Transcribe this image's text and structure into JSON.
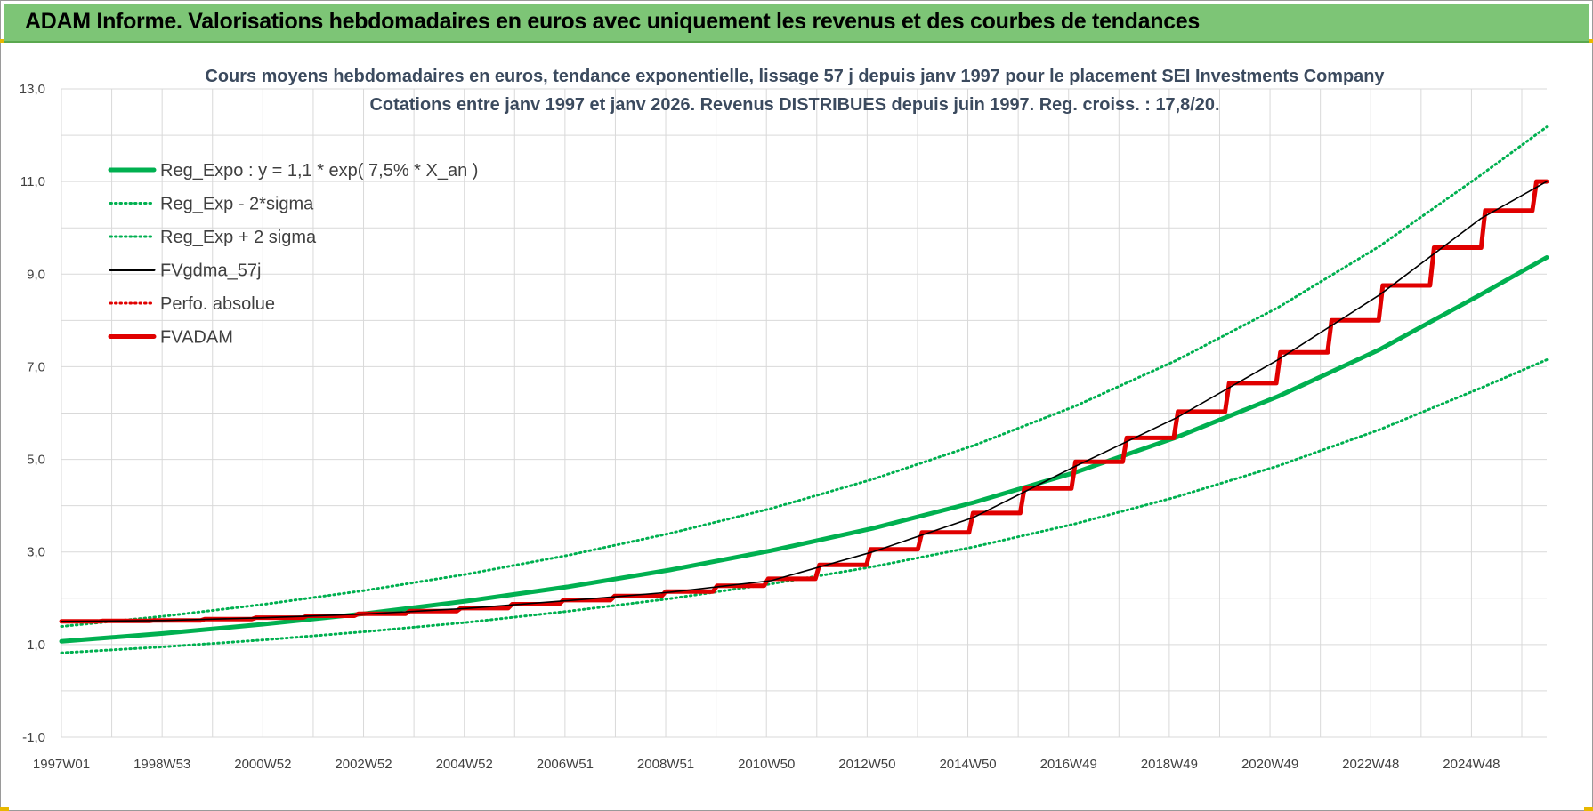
{
  "page": {
    "banner_title": "ADAM Informe. Valorisations hebdomadaires en euros avec uniquement les revenus et des courbes de tendances"
  },
  "chart_data": {
    "type": "line",
    "title": [
      "Cours moyens hebdomadaires en euros, tendance exponentielle, lissage 57 j depuis janv 1997 pour le placement SEI Investments Company",
      "Cotations entre janv 1997 et janv 2026. Revenus DISTRIBUES depuis juin 1997. Reg. croiss. : 17,8/20."
    ],
    "x_tick_labels": [
      "1997W01",
      "1998W53",
      "2000W52",
      "2002W52",
      "2004W52",
      "2006W51",
      "2008W51",
      "2010W50",
      "2012W50",
      "2014W50",
      "2016W49",
      "2018W49",
      "2020W49",
      "2022W48",
      "2024W48"
    ],
    "x_range_years": [
      1997.0,
      2026.3
    ],
    "ylim": [
      -1.0,
      13.0
    ],
    "y_ticks": [
      "-1,0",
      "1,0",
      "3,0",
      "5,0",
      "7,0",
      "9,0",
      "11,0",
      "13,0"
    ],
    "grid": true,
    "legend_position": "top-left",
    "colors": {
      "green": "#00b050",
      "black": "#000000",
      "red": "#e00000",
      "grid": "#d9d9d9"
    },
    "series": [
      {
        "name": "Reg_Expo : y = 1,1 * exp( 7,5% *  X_an )",
        "style": "thick-solid",
        "color": "#00b050",
        "x": [
          1997,
          1999,
          2001,
          2003,
          2005,
          2007,
          2009,
          2011,
          2013,
          2015,
          2017,
          2019,
          2021,
          2023,
          2025,
          2026.3
        ],
        "y": [
          1.07,
          1.24,
          1.44,
          1.67,
          1.94,
          2.25,
          2.61,
          3.03,
          3.51,
          4.07,
          4.72,
          5.48,
          6.36,
          7.37,
          8.56,
          9.36
        ]
      },
      {
        "name": "Reg_Exp - 2*sigma",
        "style": "dotted",
        "color": "#00b050",
        "x": [
          1997,
          1999,
          2001,
          2003,
          2005,
          2007,
          2009,
          2011,
          2013,
          2015,
          2017,
          2019,
          2021,
          2023,
          2025,
          2026.3
        ],
        "y": [
          0.82,
          0.95,
          1.1,
          1.28,
          1.48,
          1.72,
          1.99,
          2.31,
          2.68,
          3.11,
          3.61,
          4.19,
          4.86,
          5.64,
          6.54,
          7.15
        ]
      },
      {
        "name": "Reg_Exp + 2 sigma",
        "style": "dotted",
        "color": "#00b050",
        "x": [
          1997,
          1999,
          2001,
          2003,
          2005,
          2007,
          2009,
          2011,
          2013,
          2015,
          2017,
          2019,
          2021,
          2023,
          2025,
          2026.3
        ],
        "y": [
          1.39,
          1.61,
          1.87,
          2.17,
          2.52,
          2.93,
          3.4,
          3.94,
          4.57,
          5.3,
          6.15,
          7.14,
          8.28,
          9.6,
          11.14,
          12.18
        ]
      },
      {
        "name": "FVgdma_57j",
        "style": "thin-solid",
        "color": "#000000",
        "x": [
          1997,
          1999,
          2001,
          2003,
          2005,
          2007,
          2009,
          2011,
          2013,
          2015,
          2017,
          2019,
          2021,
          2023,
          2025,
          2026.3
        ],
        "y": [
          1.5,
          1.52,
          1.58,
          1.66,
          1.78,
          1.95,
          2.13,
          2.38,
          3.0,
          3.75,
          4.85,
          5.9,
          7.15,
          8.55,
          10.2,
          11.0
        ]
      },
      {
        "name": "Perfo. absolue",
        "style": "dotted",
        "color": "#e00000",
        "x": [],
        "y": []
      },
      {
        "name": "FVADAM",
        "style": "thick-solid-step",
        "color": "#e00000",
        "x": [
          1997,
          1999,
          2001,
          2003,
          2005,
          2007,
          2009,
          2011,
          2013,
          2015,
          2017,
          2019,
          2021,
          2023,
          2025,
          2026.3
        ],
        "y": [
          1.5,
          1.52,
          1.58,
          1.66,
          1.78,
          1.95,
          2.13,
          2.38,
          3.0,
          3.75,
          4.85,
          5.9,
          7.15,
          8.55,
          10.2,
          11.0
        ]
      }
    ]
  }
}
